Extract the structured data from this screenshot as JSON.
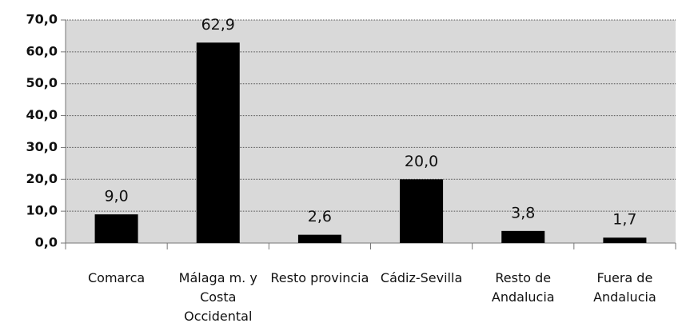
{
  "chart_data": {
    "type": "bar",
    "categories": [
      "Comarca",
      "Málaga m. y Costa Occidental",
      "Resto provincia",
      "Cádiz-Sevilla",
      "Resto de Andalucia",
      "Fuera de Andalucia"
    ],
    "values": [
      9.0,
      62.9,
      2.6,
      20.0,
      3.8,
      1.7
    ],
    "value_labels": [
      "9,0",
      "62,9",
      "2,6",
      "20,0",
      "3,8",
      "1,7"
    ],
    "color": "#000000",
    "ylim": [
      0,
      70
    ],
    "yticks": [
      {
        "value": 0,
        "label": "0,0"
      },
      {
        "value": 10,
        "label": "10,0"
      },
      {
        "value": 20,
        "label": "20,0"
      },
      {
        "value": 30,
        "label": "30,0"
      },
      {
        "value": 40,
        "label": "40,0"
      },
      {
        "value": 50,
        "label": "50,0"
      },
      {
        "value": 60,
        "label": "60,0"
      },
      {
        "value": 70,
        "label": "70,0"
      }
    ],
    "grid": true
  }
}
